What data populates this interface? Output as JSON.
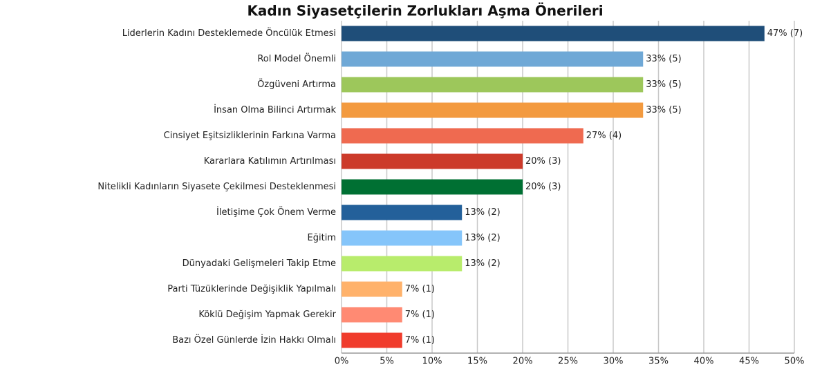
{
  "chart_data": {
    "type": "hbar",
    "title": "Kadın Siyasetçilerin Zorlukları Aşma Önerileri",
    "categories": [
      "Liderlerin Kadını Desteklemede Öncülük Etmesi",
      "Rol Model Önemli",
      "Özgüveni Artırma",
      "İnsan Olma Bilinci Artırmak",
      "Cinsiyet Eşitsizliklerinin Farkına Varma",
      "Kararlara Katılımın  Artırılması",
      "Nitelikli Kadınların Siyasete Çekilmesi Desteklenmesi",
      "İletişime Çok Önem Verme",
      "Eğitim",
      "Dünyadaki Gelişmeleri Takip Etme",
      "Parti Tüzüklerinde Değişiklik Yapılmalı",
      "Köklü Değişim Yapmak Gerekir",
      "Bazı Özel Günlerde İzin Hakkı Olmalı"
    ],
    "values": [
      46.7,
      33.3,
      33.3,
      33.3,
      26.7,
      20,
      20,
      13.3,
      13.3,
      13.3,
      6.7,
      6.7,
      6.7
    ],
    "value_labels": [
      "47% (7)",
      "33% (5)",
      "33% (5)",
      "33% (5)",
      "27% (4)",
      "20% (3)",
      "20% (3)",
      "13% (2)",
      "13% (2)",
      "13% (2)",
      "7% (1)",
      "7% (1)",
      "7% (1)"
    ],
    "colors": [
      "#1f4e79",
      "#6fa8d6",
      "#9dc75b",
      "#f39a3f",
      "#ef6a50",
      "#cc3a2a",
      "#007033",
      "#23609a",
      "#85c5fa",
      "#b8ec6c",
      "#ffb26b",
      "#ff8a73",
      "#f03c2c"
    ],
    "xlim": [
      0,
      50
    ],
    "xticks": [
      {
        "value": 0,
        "label": "0%"
      },
      {
        "value": 5,
        "label": "5%"
      },
      {
        "value": 10,
        "label": "10%"
      },
      {
        "value": 15,
        "label": "15%"
      },
      {
        "value": 20,
        "label": "20%"
      },
      {
        "value": 25,
        "label": "25%"
      },
      {
        "value": 30,
        "label": "30%"
      },
      {
        "value": 35,
        "label": "35%"
      },
      {
        "value": 40,
        "label": "40%"
      },
      {
        "value": 45,
        "label": "45%"
      },
      {
        "value": 50,
        "label": "50%"
      }
    ],
    "grid": true
  }
}
